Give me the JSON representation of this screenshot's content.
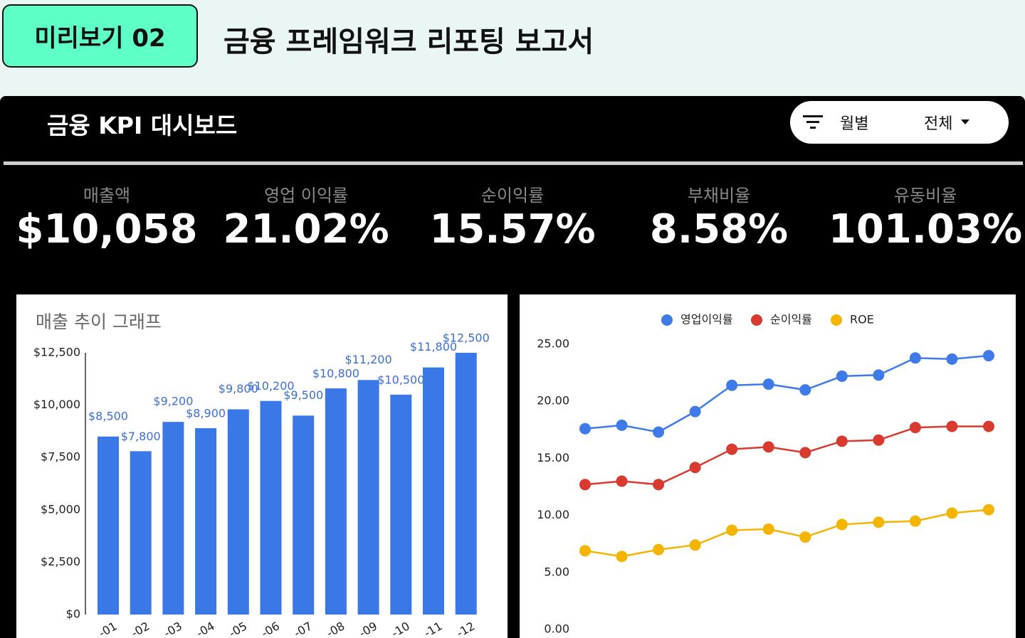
{
  "header": {
    "badge": "미리보기 02",
    "title": "금융 프레임워크 리포팅 보고서"
  },
  "dashboard": {
    "title": "금융 KPI 대시보드",
    "filter": {
      "label": "월별",
      "value": "전체"
    },
    "kpis": [
      {
        "label": "매출액",
        "value": "$10,058"
      },
      {
        "label": "영업 이익률",
        "value": "21.02%"
      },
      {
        "label": "순이익률",
        "value": "15.57%"
      },
      {
        "label": "부채비율",
        "value": "8.58%"
      },
      {
        "label": "유동비율",
        "value": "101.03%"
      }
    ]
  },
  "chart_data": [
    {
      "type": "bar",
      "title": "매출 추이 그래프",
      "categories": [
        "-01",
        "-02",
        "-03",
        "-04",
        "-05",
        "-06",
        "-07",
        "-08",
        "-09",
        "-10",
        "-11",
        "-12"
      ],
      "values": [
        8500,
        7800,
        9200,
        8900,
        9800,
        10200,
        9500,
        10800,
        11200,
        10500,
        11800,
        12500
      ],
      "value_labels": [
        "$8,500",
        "$7,800",
        "$9,200",
        "$8,900",
        "$9,800",
        "$10,200",
        "$9,500",
        "$10,800",
        "$11,200",
        "$10,500",
        "$11,800",
        "$12,500"
      ],
      "color": "#3b78e7",
      "ylim": [
        0,
        12500
      ],
      "yticks": [
        {
          "value": 0,
          "label": "$0"
        },
        {
          "value": 2500,
          "label": "$2,500"
        },
        {
          "value": 5000,
          "label": "$5,000"
        },
        {
          "value": 7500,
          "label": "$7,500"
        },
        {
          "value": 10000,
          "label": "$10,000"
        },
        {
          "value": 12500,
          "label": "$12,500"
        }
      ]
    },
    {
      "type": "line",
      "series": [
        {
          "name": "영업이익률",
          "color": "#3f7be8",
          "values": [
            17.6,
            17.9,
            17.3,
            19.1,
            21.4,
            21.5,
            21.0,
            22.2,
            22.3,
            23.8,
            23.7,
            24.0
          ]
        },
        {
          "name": "순이익률",
          "color": "#d93a2f",
          "values": [
            12.7,
            13.0,
            12.7,
            14.2,
            15.8,
            16.0,
            15.5,
            16.5,
            16.6,
            17.7,
            17.8,
            17.8
          ]
        },
        {
          "name": "ROE",
          "color": "#f4b400",
          "values": [
            6.9,
            6.4,
            7.0,
            7.4,
            8.7,
            8.8,
            8.1,
            9.2,
            9.4,
            9.5,
            10.2,
            10.5
          ]
        }
      ],
      "ylim": [
        0,
        25
      ],
      "yticks": [
        {
          "value": 0,
          "label": "0.00"
        },
        {
          "value": 5,
          "label": "5.00"
        },
        {
          "value": 10,
          "label": "10.00"
        },
        {
          "value": 15,
          "label": "15.00"
        },
        {
          "value": 20,
          "label": "20.00"
        },
        {
          "value": 25,
          "label": "25.00"
        }
      ]
    }
  ]
}
